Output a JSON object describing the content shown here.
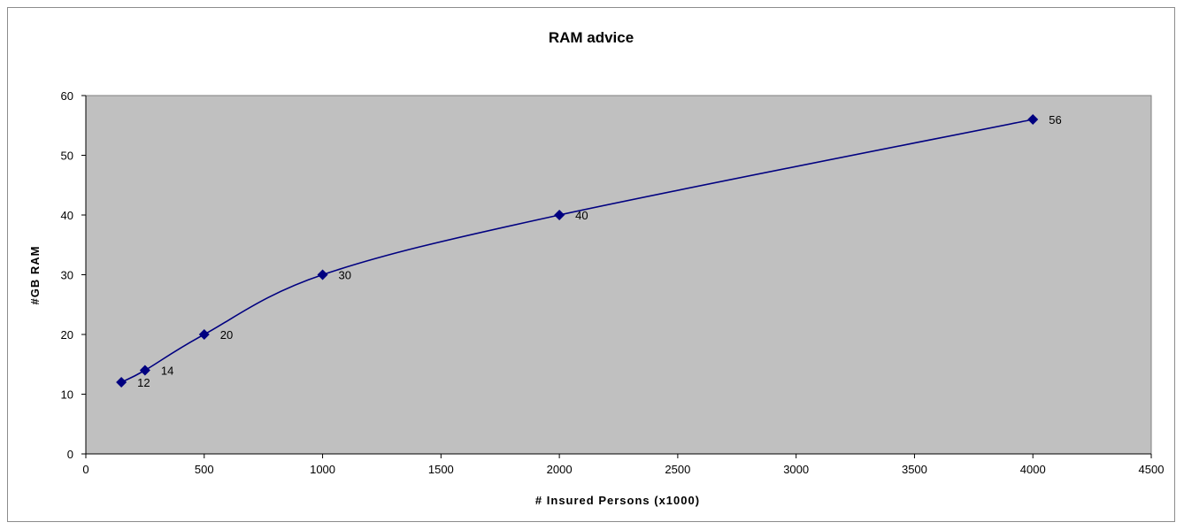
{
  "chart_data": {
    "type": "line",
    "title": "RAM advice",
    "xlabel": "# Insured Persons (x1000)",
    "ylabel": "#GB RAM",
    "xlim": [
      0,
      4500
    ],
    "ylim": [
      0,
      60
    ],
    "xticks": [
      0,
      500,
      1000,
      1500,
      2000,
      2500,
      3000,
      3500,
      4000,
      4500
    ],
    "yticks": [
      0,
      10,
      20,
      30,
      40,
      50,
      60
    ],
    "grid": false,
    "legend": "none",
    "plot_background": "#c0c0c0",
    "series": [
      {
        "color": "#000080",
        "marker": "diamond",
        "smooth": true,
        "points": [
          {
            "x": 150,
            "y": 12,
            "label": "12"
          },
          {
            "x": 250,
            "y": 14,
            "label": "14"
          },
          {
            "x": 500,
            "y": 20,
            "label": "20"
          },
          {
            "x": 1000,
            "y": 30,
            "label": "30"
          },
          {
            "x": 2000,
            "y": 40,
            "label": "40"
          },
          {
            "x": 4000,
            "y": 56,
            "label": "56"
          }
        ]
      }
    ]
  }
}
